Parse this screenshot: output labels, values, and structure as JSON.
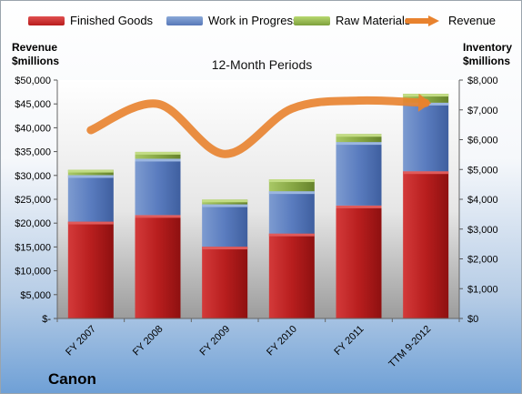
{
  "legend": {
    "finished_goods": "Finished Goods",
    "work_in_progress": "Work in Progress",
    "raw_materials": "Raw Materials",
    "revenue": "Revenue"
  },
  "axis_titles": {
    "left_line1": "Revenue",
    "left_line2": "$millions",
    "right_line1": "Inventory",
    "right_line2": "$millions"
  },
  "title": "12-Month Periods",
  "company": "Canon",
  "colors": {
    "finished_goods": "#c62828",
    "work_in_progress": "#5f80bf",
    "raw_materials": "#8fb04a",
    "revenue": "#e8822e"
  },
  "chart_data": {
    "type": "bar",
    "stacked": true,
    "categories": [
      "FY 2007",
      "FY 2008",
      "FY 2009",
      "FY 2010",
      "FY 2011",
      "TTM 9-2012"
    ],
    "series": [
      {
        "name": "Finished Goods",
        "axis": "right",
        "values": [
          3250,
          3470,
          2410,
          2850,
          3790,
          4940
        ]
      },
      {
        "name": "Work in Progress",
        "axis": "right",
        "values": [
          1560,
          1890,
          1420,
          1420,
          2130,
          2300
        ]
      },
      {
        "name": "Raw Materials",
        "axis": "right",
        "values": [
          180,
          230,
          160,
          400,
          270,
          300
        ]
      },
      {
        "name": "Revenue",
        "type": "line",
        "axis": "left",
        "values": [
          39500,
          45000,
          34500,
          44000,
          45700,
          45200
        ]
      }
    ],
    "y_left": {
      "min": 0,
      "max": 50000,
      "step": 5000,
      "tick_labels": [
        "$-",
        "$5,000",
        "$10,000",
        "$15,000",
        "$20,000",
        "$25,000",
        "$30,000",
        "$35,000",
        "$40,000",
        "$45,000",
        "$50,000"
      ]
    },
    "y_right": {
      "min": 0,
      "max": 8000,
      "step": 1000,
      "tick_labels": [
        "$0",
        "$1,000",
        "$2,000",
        "$3,000",
        "$4,000",
        "$5,000",
        "$6,000",
        "$7,000",
        "$8,000"
      ]
    },
    "grid": false,
    "legend_position": "top"
  }
}
